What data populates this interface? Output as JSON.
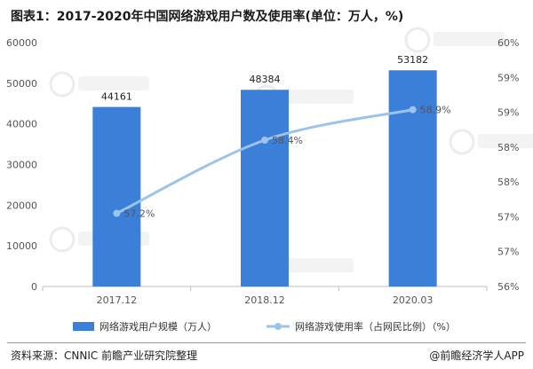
{
  "title": "图表1：2017-2020年中国网络游戏用户数及使用率(单位：万人，%)",
  "source": "资料来源：CNNIC 前瞻产业研究院整理",
  "brand": "@前瞻经济学人APP",
  "chart_data": {
    "type": "bar+line",
    "categories": [
      "2017.12",
      "2018.12",
      "2020.03"
    ],
    "series": [
      {
        "name": "网络游戏用户规模（万人）",
        "type": "bar",
        "axis": "left",
        "color": "#3b7fd9",
        "values": [
          44161,
          48384,
          53182
        ],
        "labels": [
          "44161",
          "48384",
          "53182"
        ]
      },
      {
        "name": "网络游戏使用率（占网民比例）（%）",
        "type": "line",
        "axis": "right",
        "color": "#9cc3ea",
        "values": [
          57.2,
          58.4,
          58.9
        ],
        "labels": [
          "57.2%",
          "58.4%",
          "58.9%"
        ]
      }
    ],
    "left_axis": {
      "ylim": [
        0,
        60000
      ],
      "ticks": [
        "0",
        "10000",
        "20000",
        "30000",
        "40000",
        "50000",
        "60000"
      ]
    },
    "right_axis": {
      "ylim": [
        56,
        60
      ],
      "ticks": [
        "56%",
        "57%",
        "57%",
        "58%",
        "58%",
        "59%",
        "59%",
        "60%"
      ]
    },
    "legend_position": "bottom"
  }
}
